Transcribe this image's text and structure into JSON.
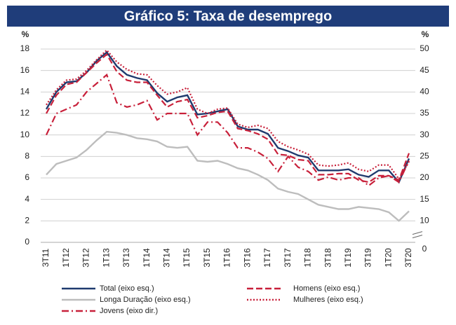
{
  "chart_data": {
    "type": "line",
    "title": "Gráfico 5: Taxa de desemprego",
    "ylabel": "%",
    "y2label": "%",
    "categories": [
      "3T11",
      null,
      "1T12",
      null,
      "3T12",
      null,
      "1T13",
      null,
      "3T13",
      null,
      "1T14",
      null,
      "3T14",
      null,
      "1T15",
      null,
      "3T15",
      null,
      "1T16",
      null,
      "3T16",
      null,
      "1T17",
      null,
      "3T17",
      null,
      "1T18",
      null,
      "3T18",
      null,
      "1T19",
      null,
      "3T19",
      null,
      "1T20",
      null,
      "3T20"
    ],
    "ylim": [
      0,
      18
    ],
    "yticks": [
      0,
      2,
      4,
      6,
      8,
      10,
      12,
      14,
      16,
      18
    ],
    "y2lim": [
      5,
      50
    ],
    "y2ticks": [
      0,
      10,
      15,
      20,
      25,
      30,
      35,
      40,
      45,
      50
    ],
    "y2_axis_break": true,
    "grid": true,
    "series": [
      {
        "name": "Total (eixo esq.)",
        "color": "#1f3a6e",
        "style": "solid",
        "values": [
          12.4,
          14.0,
          14.9,
          15.0,
          15.8,
          16.9,
          17.7,
          16.4,
          15.6,
          15.3,
          15.1,
          13.9,
          13.1,
          13.5,
          13.7,
          11.9,
          12.0,
          12.2,
          12.4,
          10.8,
          10.5,
          10.5,
          10.1,
          8.8,
          8.5,
          8.1,
          7.9,
          6.7,
          6.7,
          6.7,
          6.8,
          6.3,
          6.1,
          6.7,
          6.7,
          5.6,
          7.8
        ]
      },
      {
        "name": "Homens (eixo esq.)",
        "color": "#c8203a",
        "style": "dashed",
        "values": [
          12.0,
          13.7,
          14.7,
          14.9,
          15.8,
          16.7,
          17.5,
          15.9,
          15.1,
          14.9,
          14.9,
          13.7,
          12.6,
          13.1,
          13.3,
          11.6,
          11.8,
          12.1,
          12.2,
          10.6,
          10.4,
          10.1,
          9.6,
          8.2,
          8.1,
          7.7,
          7.6,
          6.3,
          6.3,
          6.4,
          6.4,
          5.8,
          5.6,
          6.2,
          6.2,
          5.8,
          8.3
        ]
      },
      {
        "name": "Longa Duração (eixo esq.)",
        "color": "#bdbdbd",
        "style": "solid",
        "values": [
          6.3,
          7.3,
          7.6,
          7.9,
          8.6,
          9.5,
          10.3,
          10.2,
          10.0,
          9.7,
          9.6,
          9.4,
          8.9,
          8.8,
          8.9,
          7.6,
          7.5,
          7.6,
          7.3,
          6.9,
          6.7,
          6.3,
          5.8,
          5.0,
          4.7,
          4.5,
          4.0,
          3.5,
          3.3,
          3.1,
          3.1,
          3.3,
          3.2,
          3.1,
          2.8,
          2.0,
          2.9
        ]
      },
      {
        "name": "Mulheres (eixo esq.)",
        "color": "#c8203a",
        "style": "dotted",
        "values": [
          12.8,
          14.2,
          15.1,
          15.2,
          16.0,
          17.0,
          17.9,
          16.8,
          16.1,
          15.7,
          15.6,
          14.6,
          13.8,
          14.0,
          14.4,
          12.4,
          12.0,
          12.4,
          12.5,
          11.0,
          10.7,
          10.9,
          10.6,
          9.4,
          8.9,
          8.6,
          8.2,
          7.2,
          7.1,
          7.2,
          7.4,
          6.8,
          6.6,
          7.2,
          7.2,
          5.9,
          7.5
        ]
      },
      {
        "name": "Jovens (eixo dir.)",
        "color": "#c8203a",
        "style": "dashdot",
        "axis": "y2",
        "values": [
          30,
          35,
          36,
          37,
          40,
          42,
          44,
          37.5,
          36.5,
          37,
          38,
          33.5,
          35,
          35,
          35,
          30,
          33,
          33,
          30.5,
          27,
          27,
          26,
          24.5,
          21.5,
          25,
          22.5,
          21.5,
          19.5,
          20.2,
          19.5,
          20,
          20,
          18.2,
          20,
          20.5,
          19,
          24
        ]
      }
    ]
  }
}
